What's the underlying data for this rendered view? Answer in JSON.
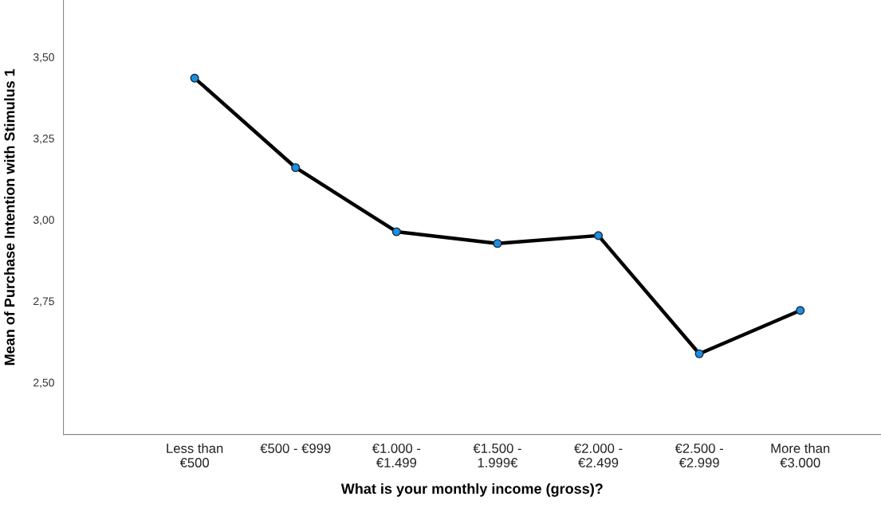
{
  "chart_data": {
    "type": "line",
    "xlabel": "What is your monthly income (gross)?",
    "ylabel": "Mean of Purchase Intention with Stimulus 1",
    "categories": [
      "Less than\n€500",
      "€500 - €999",
      "€1.000 -\n€1.499",
      "€1.500 -\n1.999€",
      "€2.000 -\n€2.499",
      "€2.500 -\n€2.999",
      "More than\n€3.000"
    ],
    "series": [
      {
        "color": "#000000",
        "values": [
          3.435,
          3.16,
          2.963,
          2.927,
          2.951,
          2.588,
          2.721
        ]
      }
    ],
    "ylim": [
      2.34,
      3.675
    ],
    "yticks": [
      {
        "value": 2.5,
        "label": "2,50"
      },
      {
        "value": 2.75,
        "label": "2,75"
      },
      {
        "value": 3.0,
        "label": "3,00"
      },
      {
        "value": 3.25,
        "label": "3,25"
      },
      {
        "value": 3.5,
        "label": "3,50"
      }
    ],
    "marker": "circle",
    "line_style": "solid",
    "grid": false,
    "legend": false
  }
}
